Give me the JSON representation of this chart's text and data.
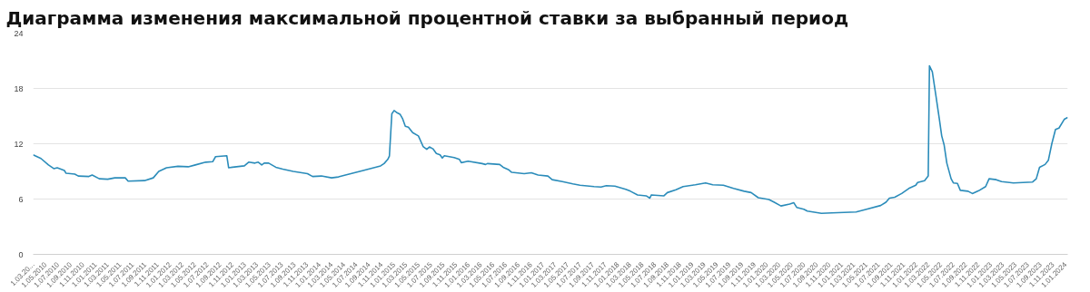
{
  "chart_data": {
    "type": "line",
    "title": "Диаграмма изменения максимальной процентной ставки за выбранный период",
    "x": [
      "2010-03-01",
      "2010-04-08",
      "2010-05-15",
      "2010-06-10",
      "2010-06-27",
      "2010-08-01",
      "2010-08-09",
      "2010-09-21",
      "2010-10-08",
      "2010-11-29",
      "2010-12-15",
      "2011-01-19",
      "2011-03-01",
      "2011-04-05",
      "2011-05-26",
      "2011-06-09",
      "2011-08-28",
      "2011-10-10",
      "2011-11-06",
      "2011-12-14",
      "2012-02-08",
      "2012-03-29",
      "2012-05-03",
      "2012-06-23",
      "2012-07-27",
      "2012-08-10",
      "2012-10-04",
      "2012-10-13",
      "2012-12-29",
      "2013-01-19",
      "2013-02-19",
      "2013-03-07",
      "2013-03-24",
      "2013-04-05",
      "2013-04-27",
      "2013-06-01",
      "2013-07-05",
      "2013-08-25",
      "2013-11-03",
      "2013-11-28",
      "2014-01-10",
      "2014-03-01",
      "2014-04-04",
      "2014-05-08",
      "2014-06-12",
      "2014-08-03",
      "2014-09-23",
      "2014-10-27",
      "2014-11-13",
      "2014-12-01",
      "2014-12-09",
      "2014-12-21",
      "2015-01-01",
      "2015-01-13",
      "2015-01-30",
      "2015-02-11",
      "2015-02-25",
      "2015-03-12",
      "2015-04-02",
      "2015-04-30",
      "2015-05-23",
      "2015-06-10",
      "2015-06-23",
      "2015-07-10",
      "2015-07-27",
      "2015-08-14",
      "2015-08-25",
      "2015-09-04",
      "2015-10-22",
      "2015-11-17",
      "2015-11-26",
      "2015-12-29",
      "2016-03-07",
      "2016-03-24",
      "2016-04-02",
      "2016-06-01",
      "2016-06-18",
      "2016-07-13",
      "2016-07-30",
      "2016-09-29",
      "2016-11-03",
      "2016-12-06",
      "2017-01-23",
      "2017-02-13",
      "2017-04-04",
      "2017-05-25",
      "2017-06-29",
      "2017-09-06",
      "2017-10-10",
      "2017-11-05",
      "2017-12-17",
      "2018-02-08",
      "2018-03-03",
      "2018-04-07",
      "2018-05-19",
      "2018-06-06",
      "2018-06-14",
      "2018-08-14",
      "2018-08-31",
      "2018-10-12",
      "2018-11-16",
      "2019-01-15",
      "2019-03-06",
      "2019-04-10",
      "2019-06-01",
      "2019-07-21",
      "2019-09-11",
      "2019-10-15",
      "2019-11-19",
      "2020-01-10",
      "2020-02-05",
      "2020-03-09",
      "2020-04-21",
      "2020-05-11",
      "2020-05-25",
      "2020-06-29",
      "2020-07-16",
      "2020-09-23",
      "2020-11-14",
      "2021-03-12",
      "2021-05-02",
      "2021-07-10",
      "2021-08-05",
      "2021-08-22",
      "2021-09-17",
      "2021-10-21",
      "2021-11-25",
      "2021-12-29",
      "2022-01-07",
      "2022-02-10",
      "2022-02-28",
      "2022-03-06",
      "2022-03-20",
      "2022-04-06",
      "2022-04-23",
      "2022-05-05",
      "2022-05-17",
      "2022-05-30",
      "2022-06-20",
      "2022-07-01",
      "2022-07-21",
      "2022-08-04",
      "2022-09-11",
      "2022-10-02",
      "2022-11-02",
      "2022-12-06",
      "2022-12-23",
      "2023-01-27",
      "2023-02-22",
      "2023-04-21",
      "2023-07-24",
      "2023-08-11",
      "2023-08-27",
      "2023-09-23",
      "2023-10-09",
      "2023-10-26",
      "2023-11-13",
      "2023-11-30",
      "2023-12-26",
      "2024-01-12"
    ],
    "series": [
      {
        "color": "#2b8cba",
        "values": [
          10.8,
          10.4,
          9.7,
          9.3,
          9.4,
          9.1,
          8.8,
          8.7,
          8.5,
          8.45,
          8.6,
          8.2,
          8.15,
          8.3,
          8.3,
          7.95,
          8.0,
          8.3,
          9.0,
          9.4,
          9.55,
          9.5,
          9.7,
          10.0,
          10.05,
          10.6,
          10.7,
          9.4,
          9.6,
          10.0,
          9.9,
          10.0,
          9.7,
          9.9,
          9.9,
          9.45,
          9.25,
          9.0,
          8.75,
          8.45,
          8.5,
          8.3,
          8.4,
          8.6,
          8.8,
          9.1,
          9.4,
          9.6,
          9.85,
          10.3,
          10.65,
          15.25,
          15.6,
          15.4,
          15.2,
          14.75,
          13.9,
          13.8,
          13.2,
          12.85,
          11.7,
          11.4,
          11.65,
          11.45,
          10.95,
          10.8,
          10.45,
          10.7,
          10.5,
          10.3,
          9.95,
          10.1,
          9.85,
          9.75,
          9.85,
          9.75,
          9.45,
          9.2,
          8.9,
          8.75,
          8.85,
          8.6,
          8.5,
          8.1,
          7.9,
          7.65,
          7.5,
          7.35,
          7.3,
          7.45,
          7.4,
          7.05,
          6.85,
          6.45,
          6.35,
          6.1,
          6.45,
          6.35,
          6.7,
          7.0,
          7.35,
          7.55,
          7.75,
          7.55,
          7.5,
          7.15,
          6.85,
          6.7,
          6.15,
          5.95,
          5.65,
          5.25,
          5.45,
          5.6,
          5.1,
          4.9,
          4.7,
          4.45,
          4.5,
          4.6,
          4.9,
          5.3,
          5.65,
          6.1,
          6.2,
          6.6,
          7.15,
          7.5,
          7.8,
          8.0,
          8.5,
          20.45,
          19.8,
          17.3,
          14.75,
          12.85,
          11.85,
          9.9,
          8.2,
          7.75,
          7.7,
          6.95,
          6.85,
          6.6,
          6.9,
          7.35,
          8.2,
          8.1,
          7.9,
          7.75,
          7.85,
          8.2,
          9.45,
          9.75,
          10.2,
          12.0,
          13.55,
          13.7,
          14.65,
          14.85
        ]
      }
    ],
    "xlim": [
      "2010-03-01",
      "2024-01-12"
    ],
    "xticks": [
      {
        "value": "2010-03-01",
        "label": "1.03.20..."
      },
      {
        "value": "2010-05-01",
        "label": "1.05.2010"
      },
      {
        "value": "2010-07-01",
        "label": "1.07.2010"
      },
      {
        "value": "2010-09-01",
        "label": "1.09.2010"
      },
      {
        "value": "2010-11-01",
        "label": "1.11.2010"
      },
      {
        "value": "2011-01-01",
        "label": "1.01.2011"
      },
      {
        "value": "2011-03-01",
        "label": "1.03.2011"
      },
      {
        "value": "2011-05-01",
        "label": "1.05.2011"
      },
      {
        "value": "2011-07-01",
        "label": "1.07.2011"
      },
      {
        "value": "2011-09-01",
        "label": "1.09.2011"
      },
      {
        "value": "2011-11-01",
        "label": "1.11.2011"
      },
      {
        "value": "2012-01-01",
        "label": "1.01.2012"
      },
      {
        "value": "2012-03-01",
        "label": "1.03.2012"
      },
      {
        "value": "2012-05-01",
        "label": "1.05.2012"
      },
      {
        "value": "2012-07-01",
        "label": "1.07.2012"
      },
      {
        "value": "2012-09-01",
        "label": "1.09.2012"
      },
      {
        "value": "2012-11-01",
        "label": "1.11.2012"
      },
      {
        "value": "2013-01-01",
        "label": "1.01.2013"
      },
      {
        "value": "2013-03-01",
        "label": "1.03.2013"
      },
      {
        "value": "2013-05-01",
        "label": "1.05.2013"
      },
      {
        "value": "2013-07-01",
        "label": "1.07.2013"
      },
      {
        "value": "2013-09-01",
        "label": "1.09.2013"
      },
      {
        "value": "2013-11-01",
        "label": "1.11.2013"
      },
      {
        "value": "2014-01-01",
        "label": "1.01.2014"
      },
      {
        "value": "2014-03-01",
        "label": "1.03.2014"
      },
      {
        "value": "2014-05-01",
        "label": "1.05.2014"
      },
      {
        "value": "2014-07-01",
        "label": "1.07.2014"
      },
      {
        "value": "2014-09-01",
        "label": "1.09.2014"
      },
      {
        "value": "2014-11-01",
        "label": "1.11.2014"
      },
      {
        "value": "2015-01-01",
        "label": "1.01.2015"
      },
      {
        "value": "2015-03-01",
        "label": "1.03.2015"
      },
      {
        "value": "2015-05-01",
        "label": "1.05.2015"
      },
      {
        "value": "2015-07-01",
        "label": "1.07.2015"
      },
      {
        "value": "2015-09-01",
        "label": "1.09.2015"
      },
      {
        "value": "2015-11-01",
        "label": "1.11.2015"
      },
      {
        "value": "2016-01-01",
        "label": "1.01.2016"
      },
      {
        "value": "2016-03-01",
        "label": "1.03.2016"
      },
      {
        "value": "2016-05-01",
        "label": "1.05.2016"
      },
      {
        "value": "2016-07-01",
        "label": "1.07.2016"
      },
      {
        "value": "2016-09-01",
        "label": "1.09.2016"
      },
      {
        "value": "2016-11-01",
        "label": "1.11.2016"
      },
      {
        "value": "2017-01-01",
        "label": "1.01.2017"
      },
      {
        "value": "2017-03-01",
        "label": "1.03.2017"
      },
      {
        "value": "2017-05-01",
        "label": "1.05.2017"
      },
      {
        "value": "2017-07-01",
        "label": "1.07.2017"
      },
      {
        "value": "2017-09-01",
        "label": "1.09.2017"
      },
      {
        "value": "2017-11-01",
        "label": "1.11.2017"
      },
      {
        "value": "2018-01-01",
        "label": "1.01.2018"
      },
      {
        "value": "2018-03-01",
        "label": "1.03.2018"
      },
      {
        "value": "2018-05-01",
        "label": "1.05.2018"
      },
      {
        "value": "2018-07-01",
        "label": "1.07.2018"
      },
      {
        "value": "2018-09-01",
        "label": "1.09.2018"
      },
      {
        "value": "2018-11-01",
        "label": "1.11.2018"
      },
      {
        "value": "2019-01-01",
        "label": "1.01.2019"
      },
      {
        "value": "2019-03-01",
        "label": "1.03.2019"
      },
      {
        "value": "2019-05-01",
        "label": "1.05.2019"
      },
      {
        "value": "2019-07-01",
        "label": "1.07.2019"
      },
      {
        "value": "2019-09-01",
        "label": "1.09.2019"
      },
      {
        "value": "2019-11-01",
        "label": "1.11.2019"
      },
      {
        "value": "2020-01-01",
        "label": "1.01.2020"
      },
      {
        "value": "2020-03-01",
        "label": "1.03.2020"
      },
      {
        "value": "2020-05-01",
        "label": "1.05.2020"
      },
      {
        "value": "2020-07-01",
        "label": "1.07.2020"
      },
      {
        "value": "2020-09-01",
        "label": "1.09.2020"
      },
      {
        "value": "2020-11-01",
        "label": "1.11.2020"
      },
      {
        "value": "2021-01-01",
        "label": "1.01.2021"
      },
      {
        "value": "2021-03-01",
        "label": "1.03.2021"
      },
      {
        "value": "2021-05-01",
        "label": "1.05.2021"
      },
      {
        "value": "2021-07-01",
        "label": "1.07.2021"
      },
      {
        "value": "2021-09-01",
        "label": "1.09.2021"
      },
      {
        "value": "2021-11-01",
        "label": "1.11.2021"
      },
      {
        "value": "2022-01-01",
        "label": "1.01.2022"
      },
      {
        "value": "2022-03-01",
        "label": "1.03.2022"
      },
      {
        "value": "2022-05-01",
        "label": "1.05.2022"
      },
      {
        "value": "2022-07-01",
        "label": "1.07.2022"
      },
      {
        "value": "2022-09-01",
        "label": "1.09.2022"
      },
      {
        "value": "2022-11-01",
        "label": "1.11.2022"
      },
      {
        "value": "2023-01-01",
        "label": "1.01.2023"
      },
      {
        "value": "2023-03-01",
        "label": "1.03.2023"
      },
      {
        "value": "2023-05-01",
        "label": "1.05.2023"
      },
      {
        "value": "2023-07-01",
        "label": "1.07.2023"
      },
      {
        "value": "2023-09-01",
        "label": "1.09.2023"
      },
      {
        "value": "2023-11-01",
        "label": "1.11.2023"
      },
      {
        "value": "2024-01-01",
        "label": "1.01.2024"
      }
    ],
    "ylim": [
      0,
      24
    ],
    "yticks": [
      0,
      6,
      12,
      18,
      24
    ],
    "grid": "y",
    "marker": "none",
    "line_style": "solid"
  }
}
